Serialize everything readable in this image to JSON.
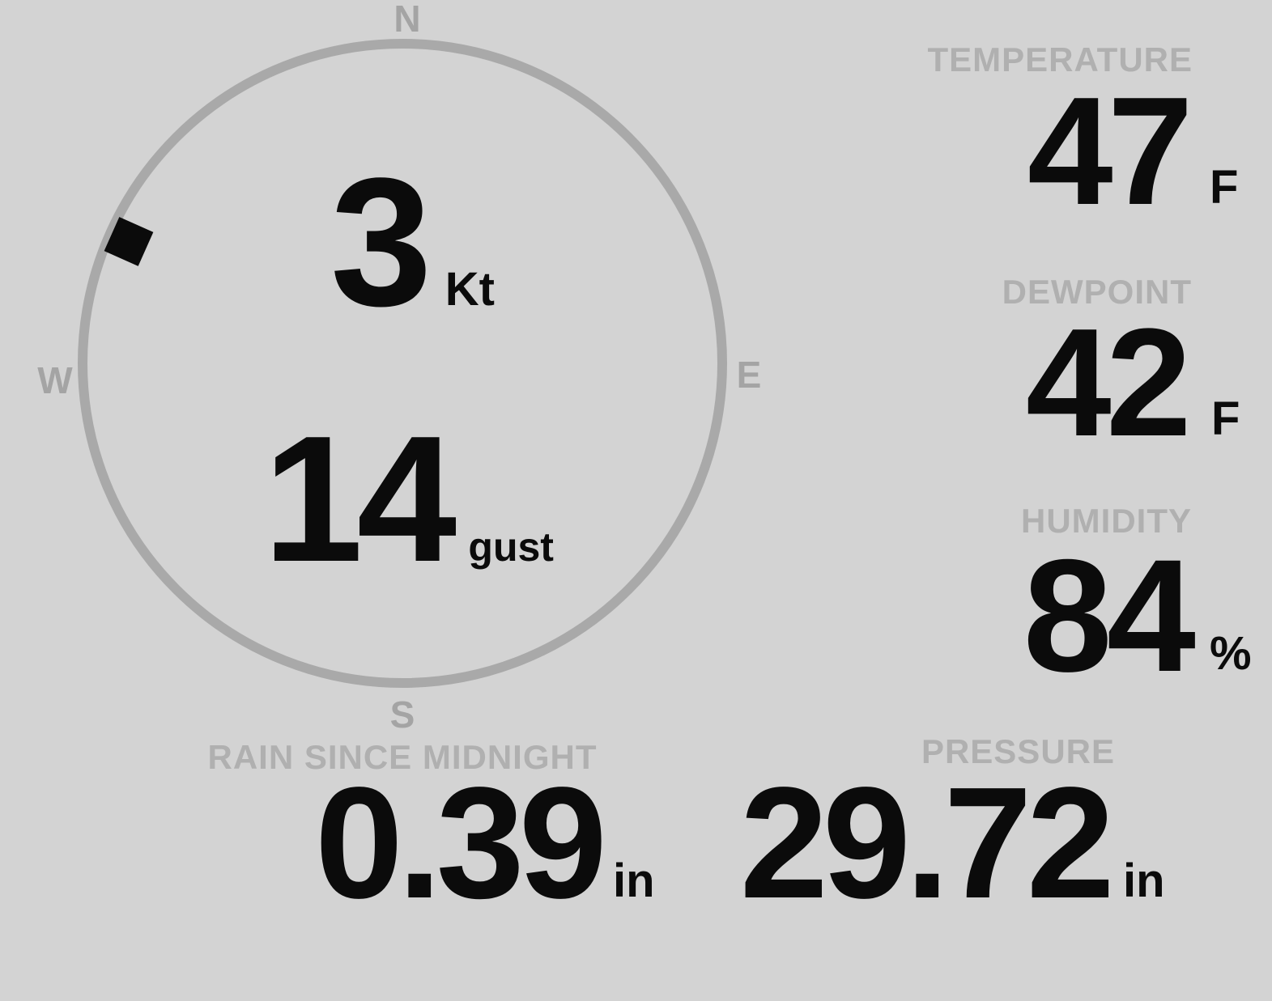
{
  "colors": {
    "background": "#d3d3d3",
    "dial": "#a9a9a9",
    "muted_label": "#b0b0b0",
    "value_text": "#0b0b0b"
  },
  "compass": {
    "labels": {
      "north": "N",
      "east": "E",
      "south": "S",
      "west": "W"
    },
    "wind_direction_deg": 294,
    "speed": {
      "value": "3",
      "unit": "Kt"
    },
    "gust": {
      "value": "14",
      "unit": "gust"
    }
  },
  "metrics": {
    "temperature": {
      "label": "TEMPERATURE",
      "value": "47",
      "unit": "F"
    },
    "dewpoint": {
      "label": "DEWPOINT",
      "value": "42",
      "unit": "F"
    },
    "humidity": {
      "label": "HUMIDITY",
      "value": "84",
      "unit": "%"
    },
    "rain_since_midnight": {
      "label": "RAIN SINCE MIDNIGHT",
      "value": "0.39",
      "unit": "in"
    },
    "pressure": {
      "label": "PRESSURE",
      "value": "29.72",
      "unit": "in"
    }
  }
}
